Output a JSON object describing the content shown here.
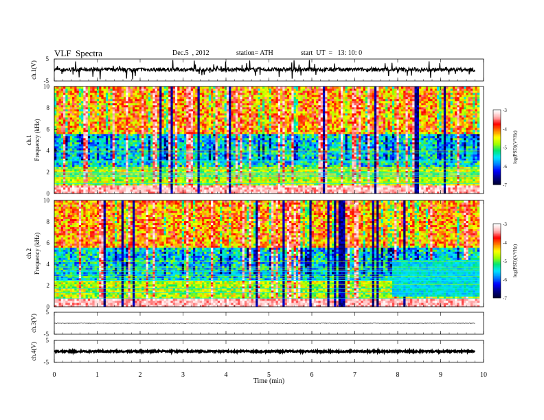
{
  "header": {
    "title": "VLF  Spectra",
    "date": "Dec.5  , 2012",
    "station": "station= ATH",
    "start": "start  UT  =   13: 10: 0"
  },
  "chart_data": [
    {
      "type": "line",
      "panel": "ch1-waveform",
      "ylabel": "ch.1(V)",
      "ylim": [
        -5,
        5
      ],
      "yticks": [
        "5",
        "-5"
      ],
      "xlim": [
        0,
        10
      ],
      "trace_x_end": 9.8,
      "baseline": 0.2,
      "noise_amplitude": 0.9,
      "spike_amplitude": 4.5
    },
    {
      "type": "heatmap",
      "panel": "ch1-spectrogram",
      "ylabel": "ch.1\nFrequency (kHz)",
      "ylabel_line1": "ch.1",
      "ylabel_line2": "Frequency  (kHz)",
      "ylim": [
        0,
        10
      ],
      "yticks": [
        "0",
        "2",
        "4",
        "6",
        "8",
        "10"
      ],
      "xlim": [
        0,
        10
      ],
      "colorbar": {
        "label": "log(PSD) (V²/Hz)",
        "label_text": "log(PSD)(V²/Hz)",
        "range": [
          -7,
          -3
        ],
        "ticks": [
          "-3",
          "-4",
          "-5",
          "-6",
          "-7"
        ]
      }
    },
    {
      "type": "heatmap",
      "panel": "ch2-spectrogram",
      "ylabel_line1": "ch.2",
      "ylabel_line2": "Frequency  (kHz)",
      "ylim": [
        0,
        10
      ],
      "yticks": [
        "0",
        "2",
        "4",
        "6",
        "8",
        "10"
      ],
      "xlim": [
        0,
        10
      ],
      "colorbar": {
        "label_text": "log(PSD)(V²/Hz)",
        "range": [
          -7,
          -3
        ],
        "ticks": [
          "-3",
          "-4",
          "-5",
          "-6",
          "-7"
        ]
      }
    },
    {
      "type": "line",
      "panel": "ch3-waveform",
      "ylabel": "ch.3(V)",
      "ylim": [
        -5,
        5
      ],
      "yticks": [
        "5",
        "-5"
      ],
      "xlim": [
        0,
        10
      ],
      "trace_x_end": 9.8,
      "baseline": 0,
      "noise_amplitude": 0.1
    },
    {
      "type": "line",
      "panel": "ch4-waveform",
      "ylabel": "ch.4(V)",
      "ylim": [
        -5,
        5
      ],
      "yticks": [
        "5",
        "-5"
      ],
      "xlim": [
        0,
        10
      ],
      "trace_x_end": 9.8,
      "baseline": 0,
      "noise_amplitude": 0.35
    }
  ],
  "x_axis": {
    "label": "Time  (min)",
    "ticks": [
      "0",
      "1",
      "2",
      "3",
      "4",
      "5",
      "6",
      "7",
      "8",
      "9",
      "10"
    ]
  },
  "colors": {
    "scale": [
      "#000033",
      "#00008b",
      "#0000ff",
      "#0080ff",
      "#00e5ff",
      "#00e676",
      "#a0ff00",
      "#ffff00",
      "#ff8000",
      "#ff0000",
      "#ffb0b0",
      "#ffffff"
    ]
  }
}
